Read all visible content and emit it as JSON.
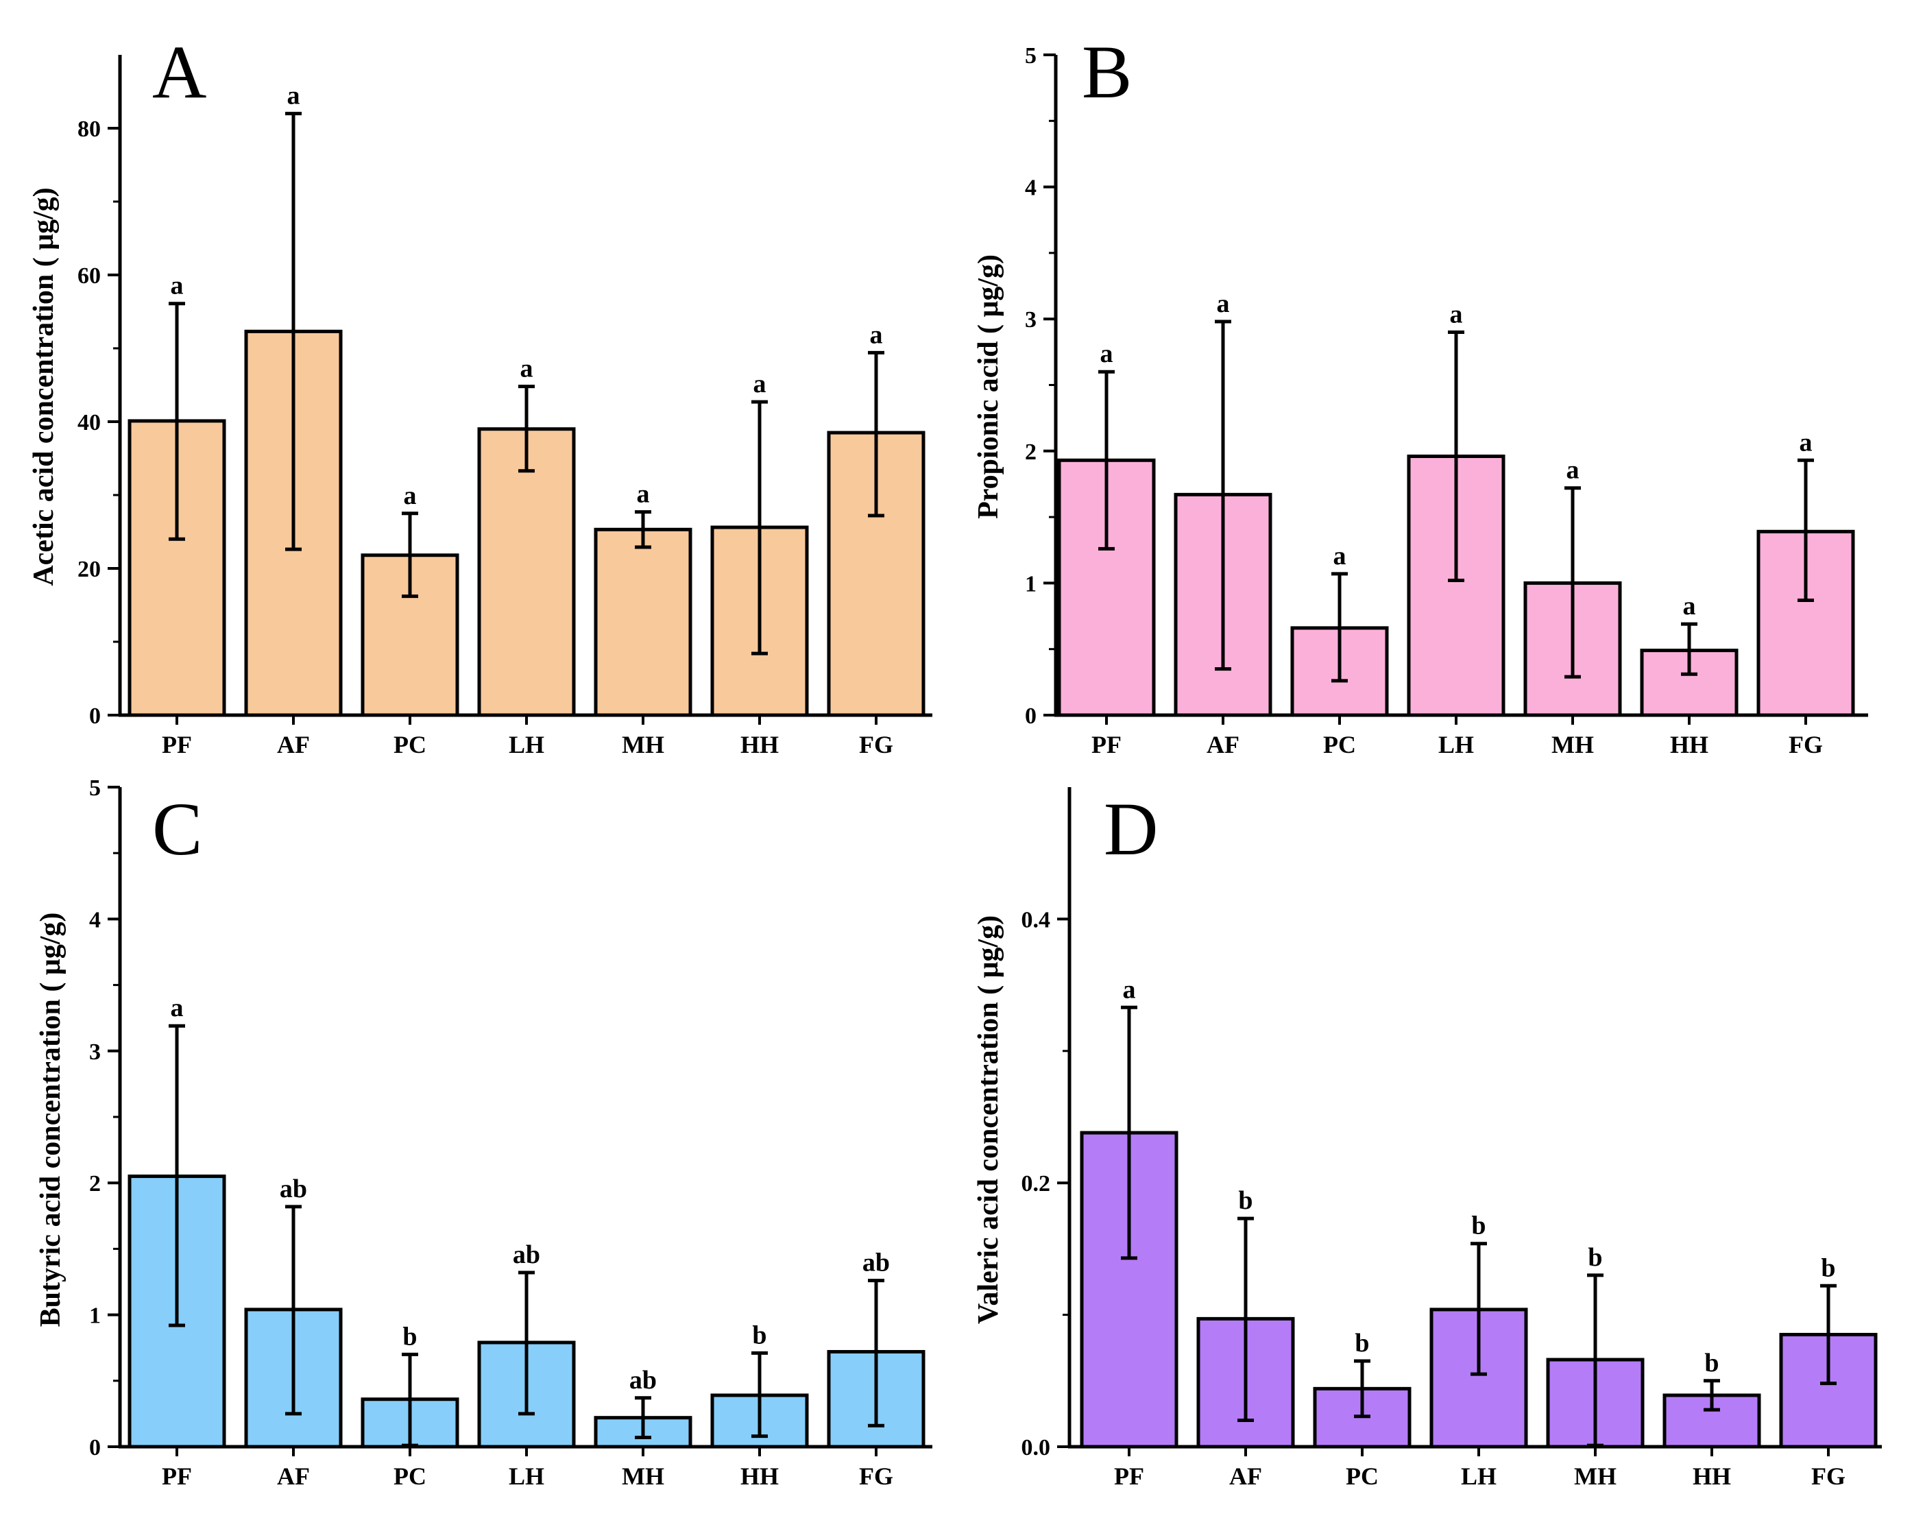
{
  "chart_data": [
    {
      "type": "bar",
      "panel": "A",
      "ylabel": "Acetic acid concentration ( μg/g)",
      "xlabel": "",
      "ylim": [
        0,
        90
      ],
      "yticks": [
        0,
        20,
        40,
        60,
        80
      ],
      "ytick_labels": [
        "0",
        "20",
        "40",
        "60",
        "80"
      ],
      "categories": [
        "PF",
        "AF",
        "PC",
        "LH",
        "MH",
        "HH",
        "FG"
      ],
      "values": [
        40.1,
        52.3,
        21.8,
        39.0,
        25.3,
        25.6,
        38.5
      ],
      "error_low": [
        24.0,
        22.6,
        16.2,
        33.3,
        22.9,
        8.4,
        27.2
      ],
      "error_high": [
        56.1,
        82.0,
        27.5,
        44.8,
        27.7,
        42.7,
        49.4
      ],
      "significance": [
        "a",
        "a",
        "a",
        "a",
        "a",
        "a",
        "a"
      ],
      "color": "#F8C99B"
    },
    {
      "type": "bar",
      "panel": "B",
      "ylabel": "Propionic acid ( μg/g)",
      "xlabel": "",
      "ylim": [
        0,
        5
      ],
      "yticks": [
        0,
        1,
        2,
        3,
        4,
        5
      ],
      "ytick_labels": [
        "0",
        "1",
        "2",
        "3",
        "4",
        "5"
      ],
      "categories": [
        "PF",
        "AF",
        "PC",
        "LH",
        "MH",
        "HH",
        "FG"
      ],
      "values": [
        1.93,
        1.67,
        0.66,
        1.96,
        1.0,
        0.49,
        1.39
      ],
      "error_low": [
        1.26,
        0.35,
        0.26,
        1.02,
        0.29,
        0.31,
        0.87
      ],
      "error_high": [
        2.6,
        2.98,
        1.07,
        2.9,
        1.72,
        0.69,
        1.93
      ],
      "significance": [
        "a",
        "a",
        "a",
        "a",
        "a",
        "a",
        "a"
      ],
      "color": "#FBB0DA"
    },
    {
      "type": "bar",
      "panel": "C",
      "ylabel": "Butyric acid concentration ( μg/g)",
      "xlabel": "",
      "ylim": [
        0,
        5
      ],
      "yticks": [
        0,
        1,
        2,
        3,
        4,
        5
      ],
      "ytick_labels": [
        "0",
        "1",
        "2",
        "3",
        "4",
        "5"
      ],
      "categories": [
        "PF",
        "AF",
        "PC",
        "LH",
        "MH",
        "HH",
        "FG"
      ],
      "values": [
        2.05,
        1.04,
        0.36,
        0.79,
        0.22,
        0.39,
        0.72
      ],
      "error_low": [
        0.92,
        0.25,
        0.01,
        0.25,
        0.07,
        0.08,
        0.16
      ],
      "error_high": [
        3.19,
        1.82,
        0.7,
        1.32,
        0.37,
        0.71,
        1.26
      ],
      "significance": [
        "a",
        "ab",
        "b",
        "ab",
        "ab",
        "b",
        "ab"
      ],
      "color": "#87CEFA"
    },
    {
      "type": "bar",
      "panel": "D",
      "ylabel": "Valeric acid concentration ( μg/g)",
      "xlabel": "",
      "ylim": [
        0,
        0.5
      ],
      "yticks": [
        0.0,
        0.2,
        0.4
      ],
      "ytick_labels": [
        "0.0",
        "0.2",
        "0.4"
      ],
      "categories": [
        "PF",
        "AF",
        "PC",
        "LH",
        "MH",
        "HH",
        "FG"
      ],
      "values": [
        0.238,
        0.097,
        0.044,
        0.104,
        0.066,
        0.039,
        0.085
      ],
      "error_low": [
        0.143,
        0.02,
        0.023,
        0.055,
        0.001,
        0.028,
        0.048
      ],
      "error_high": [
        0.333,
        0.173,
        0.065,
        0.154,
        0.13,
        0.05,
        0.122
      ],
      "significance": [
        "a",
        "b",
        "b",
        "b",
        "b",
        "b",
        "b"
      ],
      "color": "#B57CF7"
    }
  ]
}
